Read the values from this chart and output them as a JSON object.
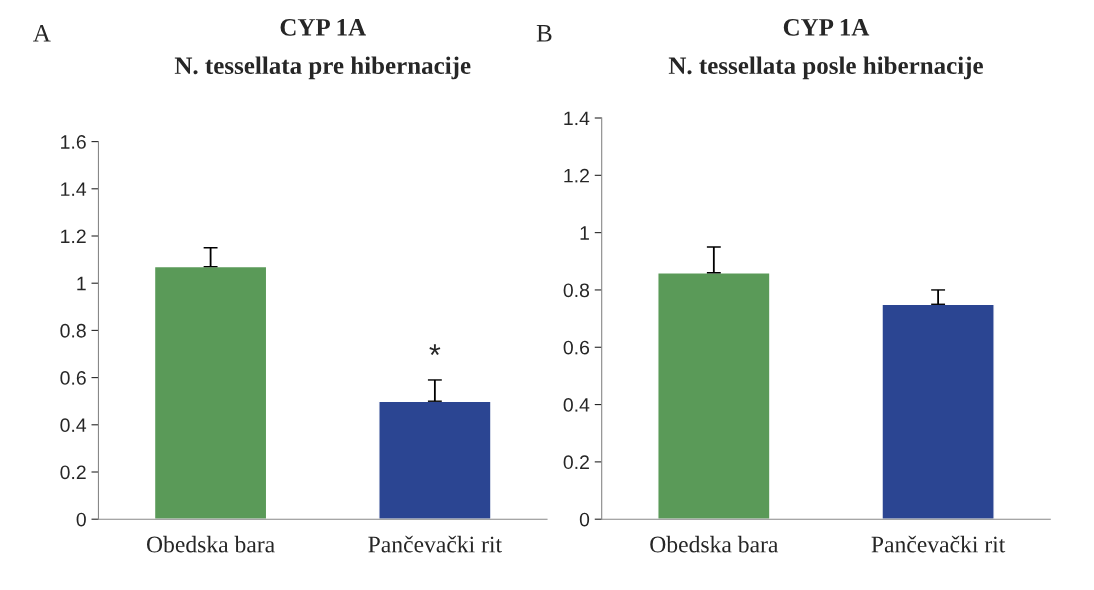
{
  "chart_data": [
    {
      "type": "bar",
      "title": "CYP 1A",
      "subtitle": "N. tessellata pre hibernacije",
      "categories": [
        "Obedska bara",
        "Pančevački rit"
      ],
      "values": [
        1.07,
        0.5
      ],
      "colors": [
        "#5a9a58",
        "#2b4592"
      ],
      "errors": [
        [
          1.07,
          1.15
        ],
        [
          0.5,
          0.59
        ]
      ],
      "ylim": [
        0,
        1.6
      ],
      "yticks": [
        0,
        0.2,
        0.4,
        0.6,
        0.8,
        1,
        1.2,
        1.4,
        1.6
      ],
      "annotations": [
        "A",
        {
          "text": "*",
          "x": "Pančevački rit",
          "y": 0.59
        }
      ]
    },
    {
      "type": "bar",
      "title": "CYP 1A",
      "subtitle": "N. tessellata posle hibernacije",
      "categories": [
        "Obedska bara",
        "Pančevački rit"
      ],
      "values": [
        0.86,
        0.75
      ],
      "colors": [
        "#5a9a58",
        "#2b4592"
      ],
      "errors": [
        [
          0.86,
          0.95
        ],
        [
          0.75,
          0.8
        ]
      ],
      "ylim": [
        0,
        1.4
      ],
      "yticks": [
        0,
        0.2,
        0.4,
        0.6,
        0.8,
        1,
        1.2,
        1.4
      ],
      "annotations": [
        "B"
      ]
    }
  ]
}
